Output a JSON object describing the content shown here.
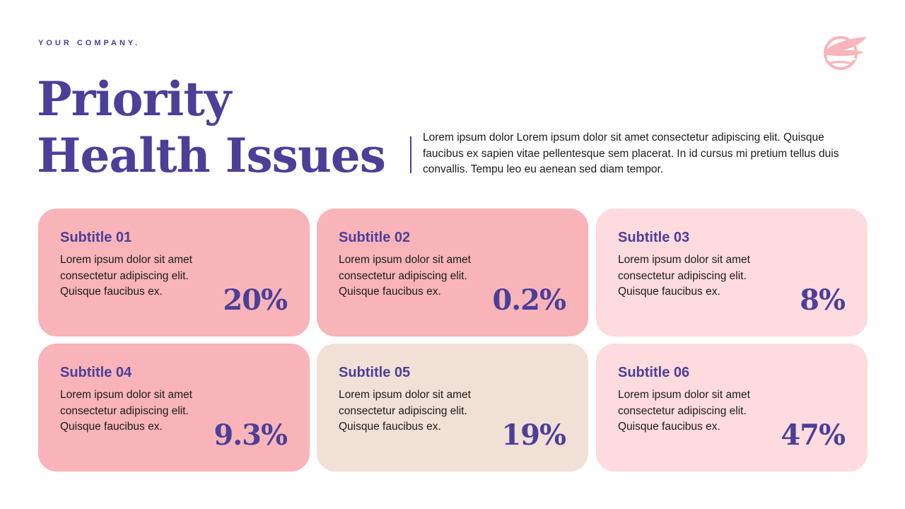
{
  "header": {
    "company": "YOUR COMPANY.",
    "title_line1": "Priority",
    "title_line2": "Health Issues",
    "intro": "Lorem ipsum dolor Lorem ipsum dolor sit amet consectetur adipiscing elit. Quisque faucibus ex sapien vitae pellentesque sem placerat. In id cursus mi pretium tellus duis convallis. Tempu leo eu aenean sed diam tempor."
  },
  "logo": {
    "icon": "wing-emblem-icon",
    "color": "#f6b6bb"
  },
  "colors": {
    "accent": "#4b3f98",
    "pink_strong": "#f8b4b9",
    "pink_light": "#fedbde",
    "beige": "#f1e0d6"
  },
  "cards": [
    {
      "subtitle": "Subtitle 01",
      "text": "Lorem ipsum dolor sit amet consectetur adipiscing elit. Quisque faucibus ex.",
      "value": "20%",
      "color": "#f8b4b9"
    },
    {
      "subtitle": "Subtitle 02",
      "text": "Lorem ipsum dolor sit amet consectetur adipiscing elit. Quisque faucibus ex.",
      "value": "0.2%",
      "color": "#f8b4b9"
    },
    {
      "subtitle": "Subtitle 03",
      "text": "Lorem ipsum dolor sit amet consectetur adipiscing elit. Quisque faucibus ex.",
      "value": "8%",
      "color": "#fedbde"
    },
    {
      "subtitle": "Subtitle 04",
      "text": "Lorem ipsum dolor sit amet consectetur adipiscing elit. Quisque faucibus ex.",
      "value": "9.3%",
      "color": "#f8b4b9"
    },
    {
      "subtitle": "Subtitle 05",
      "text": "Lorem ipsum dolor sit amet consectetur adipiscing elit. Quisque faucibus ex.",
      "value": "19%",
      "color": "#f1e0d6"
    },
    {
      "subtitle": "Subtitle 06",
      "text": "Lorem ipsum dolor sit amet consectetur adipiscing elit. Quisque faucibus ex.",
      "value": "47%",
      "color": "#fedbde"
    }
  ]
}
